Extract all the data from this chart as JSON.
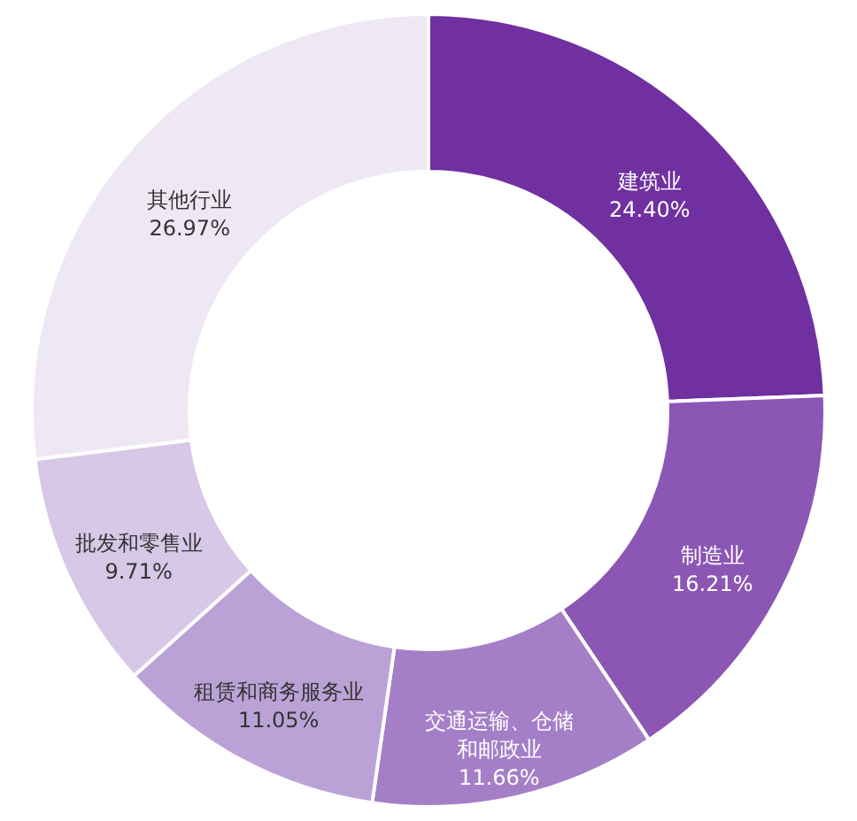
{
  "chart_data": {
    "type": "donut",
    "categories": [
      "建筑业",
      "制造业",
      "交通运输、仓储和邮政业",
      "租赁和商务服务业",
      "批发和零售业",
      "其他行业"
    ],
    "values": [
      24.4,
      16.21,
      11.66,
      11.05,
      9.71,
      26.97
    ],
    "value_labels": [
      "24.40%",
      "16.21%",
      "11.66%",
      "11.05%",
      "9.71%",
      "26.97%"
    ],
    "colors": [
      "#7030a0",
      "#8c56b4",
      "#a47fc8",
      "#bba2d6",
      "#d6c8e6",
      "#eee8f5"
    ]
  }
}
